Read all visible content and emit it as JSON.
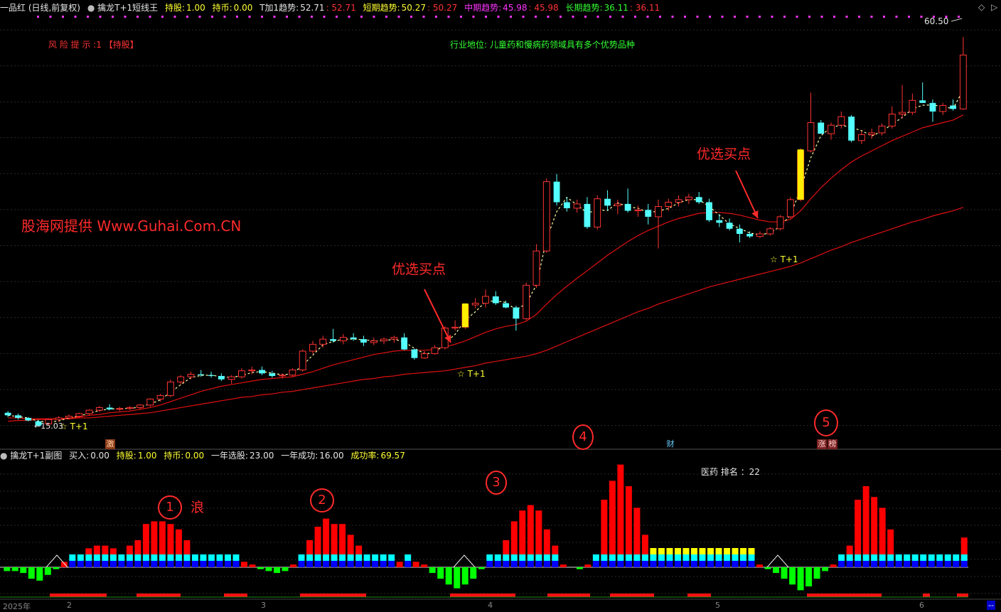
{
  "main_header": {
    "stock": "一品红 (日线,前复权)",
    "indicator": "擒龙T+1短线王",
    "hold_label": "持股:",
    "hold_value": "1.00",
    "coin_label": "持币:",
    "coin_value": "0.00",
    "t1_label": "T加1趋势:",
    "t1_value": "52.71",
    "t1_value2": ": 52.71",
    "short_label": "短期趋势:",
    "short_value": "50.27",
    "short_value2": ": 50.27",
    "mid_label": "中期趋势:",
    "mid_value": "45.98",
    "mid_value2": ": 45.98",
    "long_label": "长期趋势:",
    "long_value": "36.11",
    "long_value2": ": 36.11"
  },
  "annotations": {
    "risk": "风 险 提 示 :1 【持股】",
    "industry": "行业地位: 儿童药和慢病药领域具有多个优势品种",
    "watermark": "股海网提供 Www.Guhai.Com.CN",
    "buy_point_1": "优选买点",
    "buy_point_2": "优选买点",
    "t1_mark_1": "☆ T+1",
    "t1_mark_2": "☆ T+1",
    "t1_mark_3": "☆ T+1",
    "low_price": "←15.03",
    "high_price": "60.50",
    "wave": "浪",
    "circles": [
      "1",
      "2",
      "3",
      "4",
      "5"
    ],
    "badge_ji": "激",
    "badge_cai": "财",
    "badge_zhang": "涨",
    "badge_bang": "榜"
  },
  "sub_header": {
    "indicator": "擒龙T+1副图",
    "buy_label": "买入:",
    "buy_value": "0.00",
    "hold_label": "持股:",
    "hold_value": "1.00",
    "coin_label": "持币:",
    "coin_value": "0.00",
    "year_pick_label": "一年选股:",
    "year_pick_value": "23.00",
    "year_success_label": "一年成功:",
    "year_success_value": "16.00",
    "rate_label": "成功率:",
    "rate_value": "69.57",
    "sector_rank": "医药 排名 ：22"
  },
  "x_axis": {
    "year_label": "2025年",
    "months": [
      "2",
      "3",
      "4",
      "5",
      "6"
    ],
    "corner": "--"
  },
  "colors": {
    "up": "#ff3333",
    "down": "#54ffff",
    "ma": "#e01010",
    "dashed": "#ffffa0",
    "bar_red": "#ff0000",
    "bar_green": "#00ff00",
    "bar_cyan": "#00ffff",
    "bar_blue": "#0000ff",
    "bar_yellow": "#ffff00"
  },
  "chart_data": {
    "type": "candlestick",
    "candles_ohlc": [
      [
        16.6,
        16.8,
        16.1,
        16.3
      ],
      [
        16.3,
        16.5,
        15.8,
        16.0
      ],
      [
        16.0,
        16.1,
        15.6,
        15.7
      ],
      [
        15.6,
        15.8,
        15.0,
        15.1
      ],
      [
        15.3,
        15.9,
        15.1,
        15.8
      ],
      [
        15.8,
        16.2,
        15.6,
        16.0
      ],
      [
        16.0,
        16.4,
        15.8,
        16.2
      ],
      [
        16.2,
        16.6,
        16.0,
        16.5
      ],
      [
        16.5,
        17.0,
        16.3,
        16.9
      ],
      [
        16.9,
        17.4,
        16.7,
        17.2
      ],
      [
        17.2,
        17.6,
        16.9,
        17.0
      ],
      [
        17.0,
        17.3,
        16.8,
        17.1
      ],
      [
        17.1,
        17.4,
        16.9,
        17.2
      ],
      [
        17.2,
        17.6,
        17.0,
        17.5
      ],
      [
        17.5,
        18.3,
        17.3,
        18.2
      ],
      [
        18.2,
        18.8,
        17.9,
        18.6
      ],
      [
        18.6,
        20.5,
        18.4,
        20.2
      ],
      [
        20.2,
        21.0,
        19.9,
        20.8
      ],
      [
        20.8,
        21.4,
        20.5,
        21.1
      ],
      [
        21.1,
        21.6,
        20.8,
        21.0
      ],
      [
        21.0,
        21.4,
        20.7,
        20.9
      ],
      [
        20.9,
        21.2,
        20.3,
        20.5
      ],
      [
        20.5,
        21.0,
        20.0,
        20.8
      ],
      [
        20.8,
        21.8,
        20.6,
        21.5
      ],
      [
        21.5,
        22.0,
        21.1,
        21.6
      ],
      [
        21.6,
        22.0,
        21.0,
        21.2
      ],
      [
        21.2,
        21.5,
        20.7,
        20.9
      ],
      [
        20.9,
        21.2,
        20.6,
        21.0
      ],
      [
        21.0,
        21.8,
        20.8,
        21.6
      ],
      [
        21.6,
        24.0,
        21.4,
        23.8
      ],
      [
        23.8,
        25.0,
        23.5,
        24.6
      ],
      [
        24.6,
        25.6,
        24.2,
        25.2
      ],
      [
        25.2,
        26.4,
        24.8,
        25.0
      ],
      [
        25.0,
        25.8,
        24.6,
        25.4
      ],
      [
        25.4,
        25.9,
        25.0,
        25.2
      ],
      [
        25.2,
        25.6,
        24.4,
        24.8
      ],
      [
        24.8,
        25.4,
        24.5,
        25.0
      ],
      [
        25.0,
        25.4,
        24.6,
        25.2
      ],
      [
        25.2,
        25.6,
        24.8,
        25.4
      ],
      [
        25.4,
        25.9,
        23.9,
        24.0
      ],
      [
        24.0,
        24.1,
        22.8,
        23.0
      ],
      [
        23.0,
        23.8,
        22.9,
        23.5
      ],
      [
        23.5,
        24.5,
        23.4,
        24.2
      ],
      [
        24.2,
        26.7,
        24.0,
        26.5
      ],
      [
        26.5,
        27.4,
        26.2,
        26.6
      ],
      [
        26.6,
        29.4,
        26.4,
        29.2
      ],
      [
        29.2,
        30.0,
        28.8,
        29.4
      ],
      [
        29.4,
        31.0,
        28.9,
        30.2
      ],
      [
        30.2,
        30.8,
        29.2,
        29.4
      ],
      [
        29.4,
        29.7,
        28.8,
        28.9
      ],
      [
        28.9,
        29.1,
        26.2,
        27.6
      ],
      [
        27.6,
        31.8,
        27.4,
        31.5
      ],
      [
        31.5,
        36.3,
        31.2,
        35.5
      ],
      [
        35.5,
        44.0,
        35.3,
        43.6
      ],
      [
        43.6,
        44.5,
        40.8,
        41.2
      ],
      [
        41.2,
        41.8,
        40.1,
        40.5
      ],
      [
        40.5,
        41.5,
        40.0,
        41.0
      ],
      [
        41.0,
        41.8,
        38.1,
        38.3
      ],
      [
        38.3,
        42.0,
        38.0,
        41.6
      ],
      [
        41.6,
        42.6,
        40.2,
        40.8
      ],
      [
        40.8,
        41.5,
        39.8,
        41.0
      ],
      [
        41.0,
        42.8,
        40.0,
        40.2
      ],
      [
        40.2,
        40.8,
        39.5,
        40.3
      ],
      [
        40.3,
        41.0,
        38.6,
        39.5
      ],
      [
        39.5,
        41.5,
        35.8,
        40.7
      ],
      [
        40.7,
        41.6,
        40.2,
        41.2
      ],
      [
        41.2,
        42.0,
        40.7,
        41.5
      ],
      [
        41.5,
        42.2,
        41.0,
        41.8
      ],
      [
        41.8,
        42.4,
        41.0,
        41.2
      ],
      [
        41.2,
        41.6,
        38.9,
        39.1
      ],
      [
        39.1,
        39.8,
        38.3,
        38.8
      ],
      [
        38.8,
        39.3,
        37.9,
        38.1
      ],
      [
        38.1,
        38.6,
        36.5,
        37.5
      ],
      [
        37.5,
        37.8,
        37.0,
        37.2
      ],
      [
        37.2,
        37.8,
        37.0,
        37.5
      ],
      [
        37.5,
        38.3,
        37.3,
        38.1
      ],
      [
        38.1,
        39.7,
        37.9,
        39.5
      ],
      [
        39.5,
        41.8,
        39.3,
        41.5
      ],
      [
        41.5,
        47.5,
        41.3,
        47.2
      ],
      [
        47.2,
        54.0,
        47.0,
        50.5
      ],
      [
        50.5,
        50.8,
        49.2,
        49.2
      ],
      [
        49.2,
        50.5,
        48.5,
        50.2
      ],
      [
        50.2,
        51.8,
        49.8,
        51.2
      ],
      [
        51.2,
        51.4,
        48.2,
        48.4
      ],
      [
        48.4,
        49.5,
        48.0,
        49.1
      ],
      [
        49.1,
        49.8,
        48.6,
        49.3
      ],
      [
        49.3,
        50.4,
        49.0,
        50.1
      ],
      [
        50.1,
        52.4,
        49.8,
        51.5
      ],
      [
        51.5,
        54.9,
        51.0,
        51.7
      ],
      [
        51.7,
        53.9,
        51.4,
        53.1
      ],
      [
        53.1,
        55.2,
        52.8,
        52.8
      ],
      [
        52.8,
        53.2,
        50.6,
        51.8
      ],
      [
        51.8,
        52.8,
        51.4,
        52.5
      ],
      [
        52.5,
        53.2,
        51.9,
        52.1
      ],
      [
        52.1,
        60.5,
        52.0,
        58.4
      ]
    ],
    "ma_short": [
      16.0,
      16.0,
      15.9,
      15.9,
      15.9,
      15.9,
      16.0,
      16.1,
      16.3,
      16.4,
      16.6,
      16.7,
      16.8,
      17.0,
      17.2,
      17.5,
      17.9,
      18.3,
      18.7,
      19.1,
      19.4,
      19.7,
      19.9,
      20.1,
      20.3,
      20.5,
      20.6,
      20.7,
      20.8,
      21.1,
      21.4,
      21.8,
      22.2,
      22.5,
      22.8,
      23.1,
      23.4,
      23.6,
      23.8,
      23.9,
      23.9,
      23.9,
      24.0,
      24.3,
      24.6,
      25.0,
      25.5,
      26.0,
      26.4,
      26.7,
      26.9,
      27.3,
      28.1,
      29.3,
      30.4,
      31.4,
      32.3,
      33.2,
      34.1,
      35.0,
      35.8,
      36.6,
      37.3,
      37.9,
      38.4,
      38.9,
      39.3,
      39.6,
      39.9,
      40.0,
      40.0,
      39.9,
      39.7,
      39.4,
      39.1,
      38.9,
      38.9,
      39.2,
      40.2,
      41.6,
      42.9,
      44.0,
      45.0,
      45.9,
      46.6,
      47.2,
      47.8,
      48.4,
      48.9,
      49.4,
      49.9,
      50.2,
      50.5,
      50.8,
      51.4
    ],
    "ma_mid": [
      15.6,
      15.7,
      15.7,
      15.8,
      15.8,
      15.9,
      15.9,
      16.0,
      16.0,
      16.1,
      16.2,
      16.3,
      16.4,
      16.5,
      16.6,
      16.8,
      17.0,
      17.2,
      17.4,
      17.6,
      17.8,
      18.0,
      18.2,
      18.4,
      18.5,
      18.7,
      18.8,
      19.0,
      19.1,
      19.3,
      19.5,
      19.7,
      19.9,
      20.1,
      20.3,
      20.5,
      20.6,
      20.8,
      20.9,
      21.1,
      21.2,
      21.3,
      21.4,
      21.5,
      21.7,
      21.9,
      22.1,
      22.4,
      22.6,
      22.8,
      23.0,
      23.2,
      23.5,
      23.9,
      24.4,
      24.9,
      25.4,
      25.9,
      26.4,
      26.9,
      27.4,
      27.9,
      28.4,
      28.8,
      29.3,
      29.7,
      30.1,
      30.5,
      30.9,
      31.3,
      31.6,
      31.9,
      32.2,
      32.5,
      32.8,
      33.1,
      33.4,
      33.7,
      34.1,
      34.6,
      35.1,
      35.6,
      36.0,
      36.5,
      36.9,
      37.3,
      37.7,
      38.1,
      38.5,
      38.9,
      39.2,
      39.6,
      39.9,
      40.2,
      40.6
    ],
    "sub_bars": [
      -2,
      -2,
      -3,
      -6,
      -7,
      -4,
      -1,
      2,
      4,
      6,
      7,
      8,
      8,
      7,
      6,
      8,
      10,
      16,
      17,
      17,
      16,
      14,
      10,
      6,
      3,
      5,
      5,
      4,
      3,
      2,
      1,
      -1,
      -2,
      -3,
      -2,
      1,
      5,
      10,
      15,
      18,
      16,
      16,
      12,
      8,
      6,
      5,
      4,
      3,
      2,
      3,
      2,
      1,
      -3,
      -6,
      -9,
      -11,
      -9,
      -6,
      -1,
      3,
      6,
      10,
      17,
      21,
      23,
      21,
      14,
      8,
      1,
      0,
      -1,
      1,
      5,
      25,
      32,
      38,
      30,
      22,
      12,
      8,
      6,
      5,
      4,
      4,
      3,
      3,
      3,
      3,
      2,
      2,
      2,
      2,
      1,
      -1,
      -3,
      -6,
      -9,
      -12,
      -10,
      -6,
      -2,
      1,
      4,
      8,
      25,
      30,
      26,
      22,
      14,
      5,
      6,
      4,
      4,
      6,
      5,
      4,
      3,
      11
    ],
    "sub_strip": [
      1,
      1,
      1,
      1,
      1,
      1,
      1,
      1,
      1,
      1,
      1,
      1,
      1,
      1,
      1,
      1,
      1,
      1,
      1,
      1,
      1,
      1,
      1,
      1,
      1,
      1,
      1,
      1,
      1,
      1,
      1,
      1,
      1,
      1,
      1,
      1,
      1,
      1,
      1,
      1,
      1,
      1,
      1,
      1,
      1,
      1,
      1,
      1,
      1,
      1,
      1,
      1,
      1,
      1,
      1,
      1,
      1,
      1,
      1,
      1,
      1,
      1,
      1,
      1,
      1,
      1,
      1,
      1,
      1,
      1,
      1,
      1,
      1,
      1,
      1,
      1,
      1,
      1,
      1,
      1,
      1,
      1,
      1,
      1,
      1,
      1,
      1,
      1,
      1,
      1,
      1,
      1,
      1,
      1,
      1,
      1,
      1,
      1,
      1,
      1,
      1,
      1,
      1,
      1,
      1,
      1,
      1,
      1,
      1,
      1,
      1,
      1,
      1,
      1,
      1,
      1,
      1,
      1,
      1,
      1
    ],
    "ylim": [
      14.0,
      63.0
    ]
  }
}
